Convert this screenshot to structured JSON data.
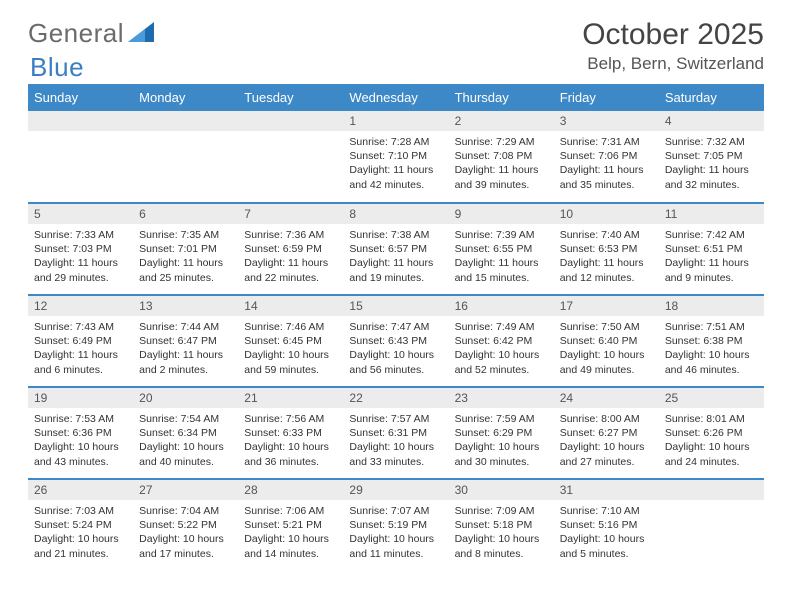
{
  "logo": {
    "word1": "General",
    "word2": "Blue"
  },
  "page": {
    "month_title": "October 2025",
    "location": "Belp, Bern, Switzerland"
  },
  "colors": {
    "header_bg": "#3d88c7",
    "header_fg": "#ffffff",
    "daynum_bg": "#ececec",
    "row_divider": "#3d88c7",
    "logo_gray": "#6b6b6b",
    "logo_blue": "#3c7fc0"
  },
  "calendar": {
    "day_headers": [
      "Sunday",
      "Monday",
      "Tuesday",
      "Wednesday",
      "Thursday",
      "Friday",
      "Saturday"
    ],
    "weeks": [
      [
        null,
        null,
        null,
        {
          "n": "1",
          "sr": "7:28 AM",
          "ss": "7:10 PM",
          "dl": "11 hours and 42 minutes."
        },
        {
          "n": "2",
          "sr": "7:29 AM",
          "ss": "7:08 PM",
          "dl": "11 hours and 39 minutes."
        },
        {
          "n": "3",
          "sr": "7:31 AM",
          "ss": "7:06 PM",
          "dl": "11 hours and 35 minutes."
        },
        {
          "n": "4",
          "sr": "7:32 AM",
          "ss": "7:05 PM",
          "dl": "11 hours and 32 minutes."
        }
      ],
      [
        {
          "n": "5",
          "sr": "7:33 AM",
          "ss": "7:03 PM",
          "dl": "11 hours and 29 minutes."
        },
        {
          "n": "6",
          "sr": "7:35 AM",
          "ss": "7:01 PM",
          "dl": "11 hours and 25 minutes."
        },
        {
          "n": "7",
          "sr": "7:36 AM",
          "ss": "6:59 PM",
          "dl": "11 hours and 22 minutes."
        },
        {
          "n": "8",
          "sr": "7:38 AM",
          "ss": "6:57 PM",
          "dl": "11 hours and 19 minutes."
        },
        {
          "n": "9",
          "sr": "7:39 AM",
          "ss": "6:55 PM",
          "dl": "11 hours and 15 minutes."
        },
        {
          "n": "10",
          "sr": "7:40 AM",
          "ss": "6:53 PM",
          "dl": "11 hours and 12 minutes."
        },
        {
          "n": "11",
          "sr": "7:42 AM",
          "ss": "6:51 PM",
          "dl": "11 hours and 9 minutes."
        }
      ],
      [
        {
          "n": "12",
          "sr": "7:43 AM",
          "ss": "6:49 PM",
          "dl": "11 hours and 6 minutes."
        },
        {
          "n": "13",
          "sr": "7:44 AM",
          "ss": "6:47 PM",
          "dl": "11 hours and 2 minutes."
        },
        {
          "n": "14",
          "sr": "7:46 AM",
          "ss": "6:45 PM",
          "dl": "10 hours and 59 minutes."
        },
        {
          "n": "15",
          "sr": "7:47 AM",
          "ss": "6:43 PM",
          "dl": "10 hours and 56 minutes."
        },
        {
          "n": "16",
          "sr": "7:49 AM",
          "ss": "6:42 PM",
          "dl": "10 hours and 52 minutes."
        },
        {
          "n": "17",
          "sr": "7:50 AM",
          "ss": "6:40 PM",
          "dl": "10 hours and 49 minutes."
        },
        {
          "n": "18",
          "sr": "7:51 AM",
          "ss": "6:38 PM",
          "dl": "10 hours and 46 minutes."
        }
      ],
      [
        {
          "n": "19",
          "sr": "7:53 AM",
          "ss": "6:36 PM",
          "dl": "10 hours and 43 minutes."
        },
        {
          "n": "20",
          "sr": "7:54 AM",
          "ss": "6:34 PM",
          "dl": "10 hours and 40 minutes."
        },
        {
          "n": "21",
          "sr": "7:56 AM",
          "ss": "6:33 PM",
          "dl": "10 hours and 36 minutes."
        },
        {
          "n": "22",
          "sr": "7:57 AM",
          "ss": "6:31 PM",
          "dl": "10 hours and 33 minutes."
        },
        {
          "n": "23",
          "sr": "7:59 AM",
          "ss": "6:29 PM",
          "dl": "10 hours and 30 minutes."
        },
        {
          "n": "24",
          "sr": "8:00 AM",
          "ss": "6:27 PM",
          "dl": "10 hours and 27 minutes."
        },
        {
          "n": "25",
          "sr": "8:01 AM",
          "ss": "6:26 PM",
          "dl": "10 hours and 24 minutes."
        }
      ],
      [
        {
          "n": "26",
          "sr": "7:03 AM",
          "ss": "5:24 PM",
          "dl": "10 hours and 21 minutes."
        },
        {
          "n": "27",
          "sr": "7:04 AM",
          "ss": "5:22 PM",
          "dl": "10 hours and 17 minutes."
        },
        {
          "n": "28",
          "sr": "7:06 AM",
          "ss": "5:21 PM",
          "dl": "10 hours and 14 minutes."
        },
        {
          "n": "29",
          "sr": "7:07 AM",
          "ss": "5:19 PM",
          "dl": "10 hours and 11 minutes."
        },
        {
          "n": "30",
          "sr": "7:09 AM",
          "ss": "5:18 PM",
          "dl": "10 hours and 8 minutes."
        },
        {
          "n": "31",
          "sr": "7:10 AM",
          "ss": "5:16 PM",
          "dl": "10 hours and 5 minutes."
        },
        null
      ]
    ]
  },
  "labels": {
    "sunrise": "Sunrise:",
    "sunset": "Sunset:",
    "daylight": "Daylight:"
  }
}
